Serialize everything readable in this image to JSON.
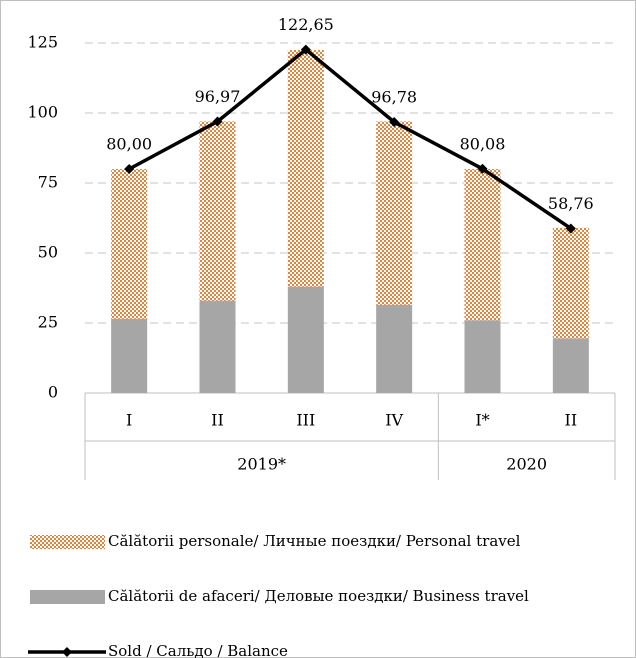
{
  "chart_data": {
    "type": "bar_line",
    "groups": [
      {
        "name": "2019*",
        "categories": [
          "I",
          "II",
          "III",
          "IV"
        ]
      },
      {
        "name": "2020",
        "categories": [
          "I*",
          "II"
        ]
      }
    ],
    "series": [
      {
        "name": "Călătorii personale/ Личные поездки/ Personal travel",
        "type": "bar",
        "color": "#e8823a",
        "pattern": "dots",
        "values": [
          53.5,
          64,
          84.5,
          65.5,
          54,
          39.5
        ]
      },
      {
        "name": "Călătorii de afaceri/ Деловые поездки/ Business travel",
        "type": "bar",
        "color": "#a6a6a6",
        "values": [
          26.5,
          33,
          38,
          31.5,
          26,
          19.5
        ]
      },
      {
        "name": "Sold / Сальдо / Balance",
        "type": "line",
        "color": "#000000",
        "values": [
          80.0,
          96.97,
          122.65,
          96.78,
          80.08,
          58.76
        ],
        "value_labels": [
          "80,00",
          "96,97",
          "122,65",
          "96,78",
          "80,08",
          "58,76"
        ]
      }
    ],
    "ylim": [
      0,
      125
    ],
    "yticks": [
      0,
      25,
      50,
      75,
      100,
      125
    ],
    "grid": true,
    "stacked": true,
    "legend": "bottom"
  }
}
